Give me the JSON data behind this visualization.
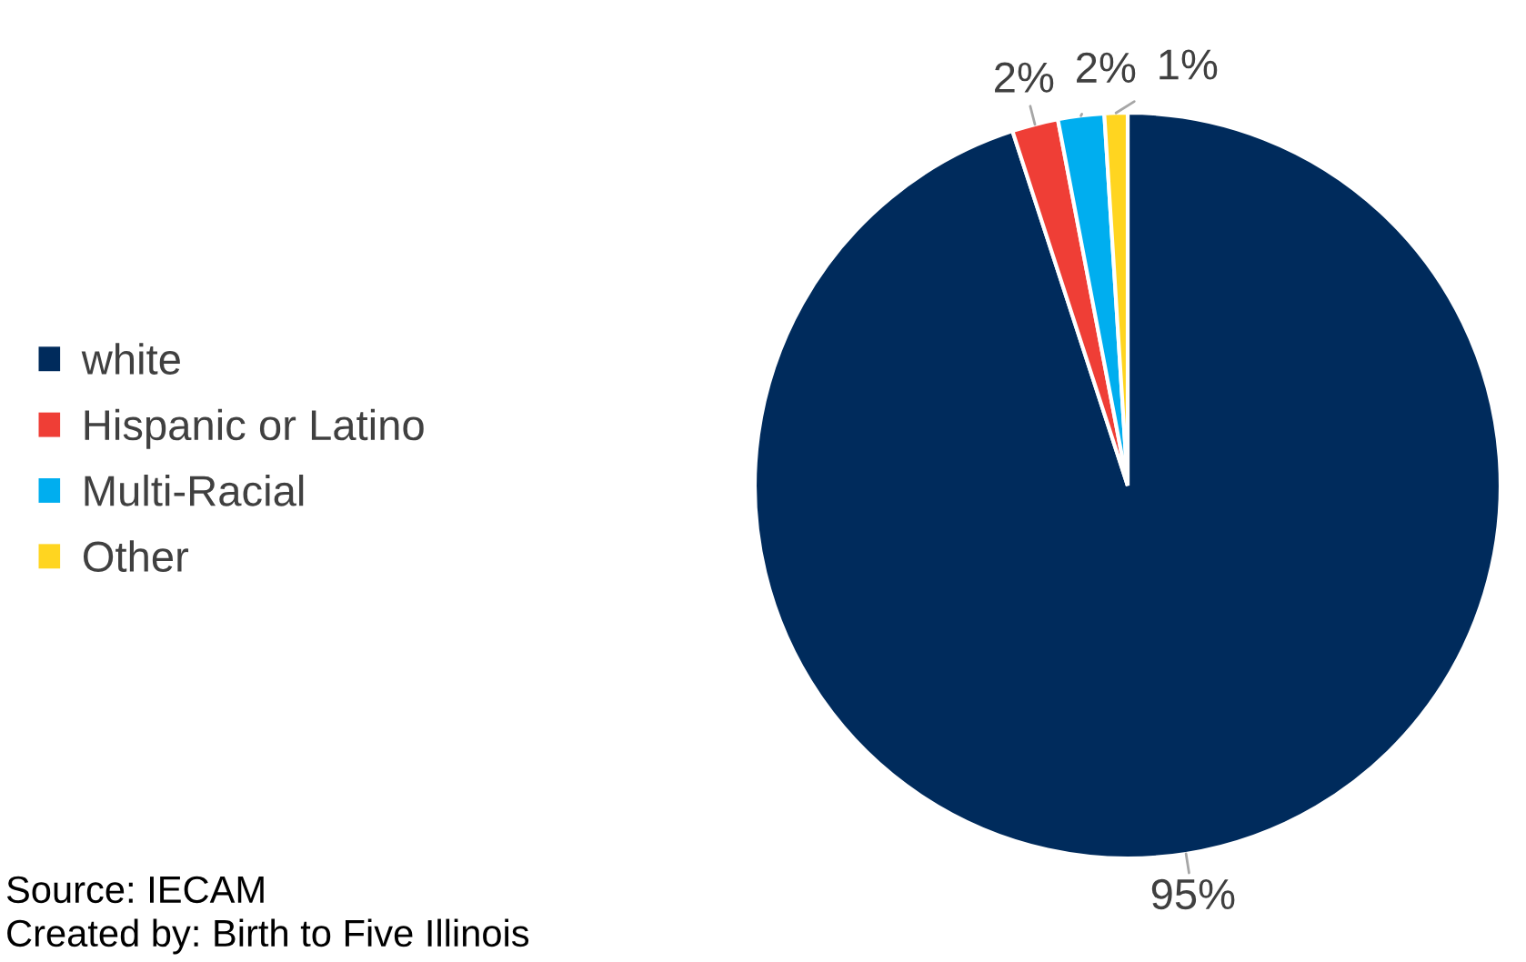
{
  "chart_data": {
    "type": "pie",
    "categories": [
      "white",
      "Hispanic or Latino",
      "Multi-Racial",
      "Other"
    ],
    "values": [
      95,
      2,
      2,
      1
    ],
    "colors": [
      "#002b5c",
      "#ef3e36",
      "#00aeef",
      "#ffd520"
    ],
    "value_labels": [
      "95%",
      "2%",
      "2%",
      "1%"
    ],
    "legend": "left",
    "annotations": [
      "Source: IECAM",
      "Created by: Birth to Five Illinois"
    ]
  }
}
